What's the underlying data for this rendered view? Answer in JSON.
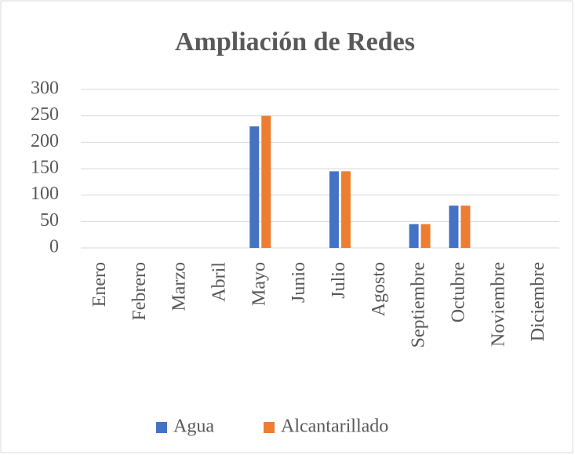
{
  "chart_data": {
    "type": "bar",
    "title": "Ampliación de Redes",
    "categories": [
      "Enero",
      "Febrero",
      "Marzo",
      "Abril",
      "Mayo",
      "Junio",
      "Julio",
      "Agosto",
      "Septiembre",
      "Octubre",
      "Noviembre",
      "Diciembre"
    ],
    "series": [
      {
        "name": "Agua",
        "color": "#4472c4",
        "values": [
          0,
          0,
          0,
          0,
          230,
          0,
          145,
          0,
          45,
          80,
          0,
          0
        ]
      },
      {
        "name": "Alcantarillado",
        "color": "#ed7d31",
        "values": [
          0,
          0,
          0,
          0,
          250,
          0,
          145,
          0,
          45,
          80,
          0,
          0
        ]
      }
    ],
    "ylim": [
      0,
      300
    ],
    "yticks": [
      0,
      50,
      100,
      150,
      200,
      250,
      300
    ],
    "grid": true,
    "legend": "bottom"
  }
}
